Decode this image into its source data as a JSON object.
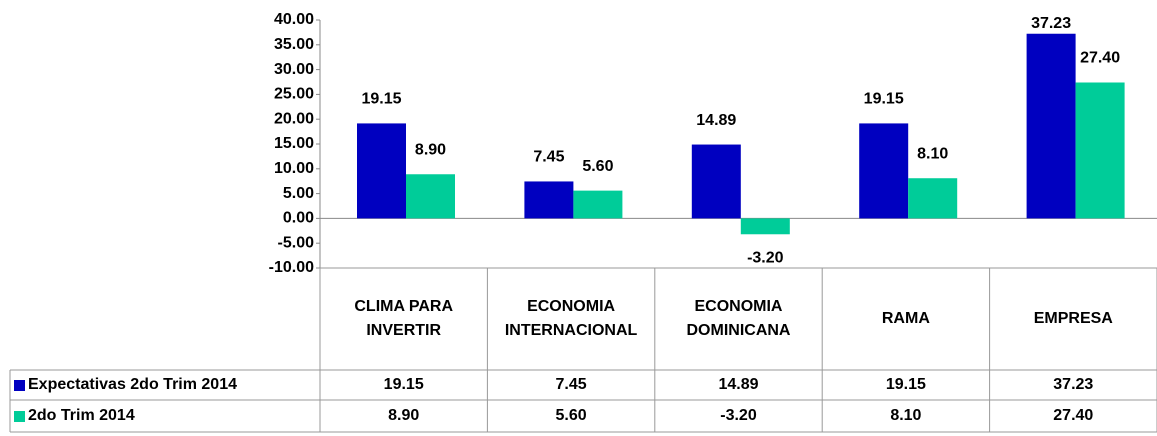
{
  "chart_data": {
    "type": "bar",
    "categories": [
      "CLIMA PARA INVERTIR",
      "ECONOMIA INTERNACIONAL",
      "ECONOMIA DOMINICANA",
      "RAMA",
      "EMPRESA"
    ],
    "series": [
      {
        "name": "Expectativas 2do Trim 2014",
        "color": "#0000c0",
        "values": [
          19.15,
          7.45,
          14.89,
          19.15,
          37.23
        ],
        "value_labels": [
          "19.15",
          "7.45",
          "14.89",
          "19.15",
          "37.23"
        ]
      },
      {
        "name": "2do Trim 2014",
        "color": "#00cc99",
        "values": [
          8.9,
          5.6,
          -3.2,
          8.1,
          27.4
        ],
        "value_labels": [
          "8.90",
          "5.60",
          "-3.20",
          "8.10",
          "27.40"
        ]
      }
    ],
    "ylim": [
      -10,
      40
    ],
    "yticks": [
      {
        "value": -10,
        "label": "-10.00"
      },
      {
        "value": -5,
        "label": "-5.00"
      },
      {
        "value": 0,
        "label": "0.00"
      },
      {
        "value": 5,
        "label": "5.00"
      },
      {
        "value": 10,
        "label": "10.00"
      },
      {
        "value": 15,
        "label": "15.00"
      },
      {
        "value": 20,
        "label": "20.00"
      },
      {
        "value": 25,
        "label": "25.00"
      },
      {
        "value": 30,
        "label": "30.00"
      },
      {
        "value": 35,
        "label": "35.00"
      },
      {
        "value": 40,
        "label": "40.00"
      }
    ],
    "data_table": true
  }
}
